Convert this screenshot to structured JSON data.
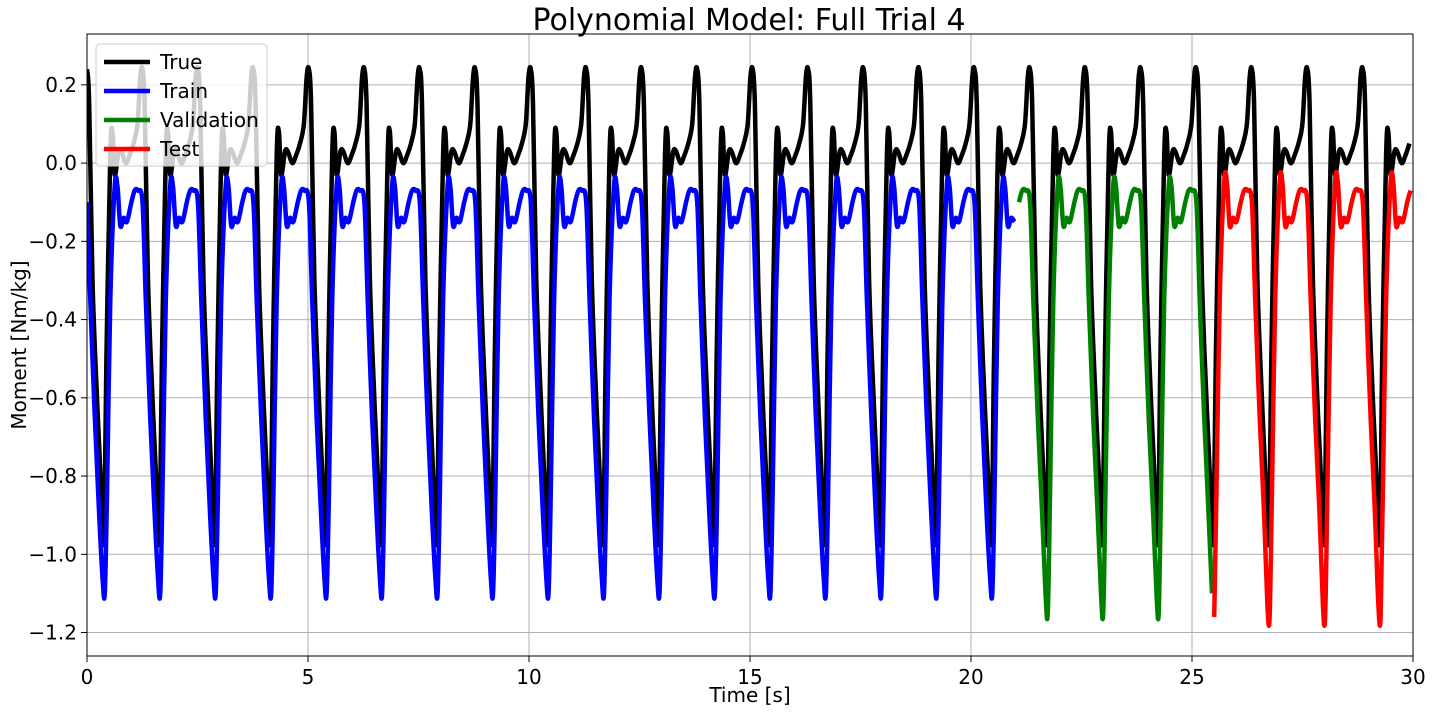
{
  "chart_data": {
    "type": "line",
    "title": "Polynomial Model: Full Trial 4",
    "xlabel": "Time [s]",
    "ylabel": "Moment [Nm/kg]",
    "xlim": [
      0,
      30
    ],
    "ylim": [
      -1.26,
      0.33
    ],
    "xticks": [
      0,
      5,
      10,
      15,
      20,
      25,
      30
    ],
    "yticks": [
      0.2,
      0.0,
      -0.2,
      -0.4,
      -0.6,
      -0.8,
      -1.0,
      -1.2
    ],
    "xtick_labels": [
      "0",
      "5",
      "10",
      "15",
      "20",
      "25",
      "30"
    ],
    "ytick_labels": [
      "0.2",
      "0.0",
      "−0.2",
      "−0.4",
      "−0.6",
      "−0.8",
      "−1.0",
      "−1.2"
    ],
    "grid": true,
    "legend_position": "top-left",
    "gait_period_s": 1.255,
    "series": [
      {
        "name": "True",
        "color": "#000000",
        "x_range": [
          0,
          30
        ],
        "cycle_profile": [
          [
            0.0,
            0.24
          ],
          [
            0.04,
            0.15
          ],
          [
            0.1,
            -0.3
          ],
          [
            0.18,
            -0.6
          ],
          [
            0.26,
            -0.85
          ],
          [
            0.31,
            -0.96
          ],
          [
            0.35,
            -0.5
          ],
          [
            0.42,
            0.02
          ],
          [
            0.46,
            0.08
          ],
          [
            0.5,
            -0.03
          ],
          [
            0.57,
            0.03
          ],
          [
            0.62,
            0.03
          ],
          [
            0.7,
            0.0
          ],
          [
            0.77,
            0.02
          ],
          [
            0.84,
            0.05
          ],
          [
            0.91,
            0.1
          ],
          [
            0.96,
            0.22
          ],
          [
            1.0,
            0.24
          ]
        ]
      },
      {
        "name": "Train",
        "color": "#0000ff",
        "x_range": [
          0,
          21.0
        ],
        "cycle_profile": [
          [
            0.0,
            -0.1
          ],
          [
            0.06,
            -0.35
          ],
          [
            0.14,
            -0.65
          ],
          [
            0.22,
            -0.9
          ],
          [
            0.28,
            -1.06
          ],
          [
            0.32,
            -1.1
          ],
          [
            0.36,
            -0.85
          ],
          [
            0.42,
            -0.35
          ],
          [
            0.5,
            -0.06
          ],
          [
            0.55,
            -0.06
          ],
          [
            0.6,
            -0.16
          ],
          [
            0.66,
            -0.14
          ],
          [
            0.72,
            -0.15
          ],
          [
            0.8,
            -0.1
          ],
          [
            0.86,
            -0.07
          ],
          [
            0.92,
            -0.07
          ],
          [
            1.0,
            -0.1
          ]
        ]
      },
      {
        "name": "Validation",
        "color": "#008000",
        "x_range": [
          21.0,
          25.5
        ],
        "cycle_profile": [
          [
            0.0,
            -0.1
          ],
          [
            0.06,
            -0.35
          ],
          [
            0.14,
            -0.65
          ],
          [
            0.22,
            -0.9
          ],
          [
            0.28,
            -1.1
          ],
          [
            0.32,
            -1.15
          ],
          [
            0.36,
            -0.85
          ],
          [
            0.42,
            -0.35
          ],
          [
            0.5,
            -0.06
          ],
          [
            0.55,
            -0.06
          ],
          [
            0.6,
            -0.16
          ],
          [
            0.66,
            -0.14
          ],
          [
            0.72,
            -0.15
          ],
          [
            0.8,
            -0.1
          ],
          [
            0.86,
            -0.07
          ],
          [
            0.92,
            -0.07
          ],
          [
            1.0,
            -0.1
          ]
        ]
      },
      {
        "name": "Test",
        "color": "#ff0000",
        "x_range": [
          25.5,
          30
        ],
        "cycle_profile": [
          [
            0.0,
            -0.1
          ],
          [
            0.06,
            -0.35
          ],
          [
            0.14,
            -0.65
          ],
          [
            0.22,
            -0.9
          ],
          [
            0.28,
            -1.13
          ],
          [
            0.32,
            -1.16
          ],
          [
            0.36,
            -0.85
          ],
          [
            0.42,
            -0.35
          ],
          [
            0.5,
            -0.05
          ],
          [
            0.55,
            -0.05
          ],
          [
            0.6,
            -0.16
          ],
          [
            0.66,
            -0.14
          ],
          [
            0.72,
            -0.15
          ],
          [
            0.8,
            -0.1
          ],
          [
            0.86,
            -0.07
          ],
          [
            0.92,
            -0.07
          ],
          [
            1.0,
            -0.1
          ]
        ]
      }
    ]
  }
}
